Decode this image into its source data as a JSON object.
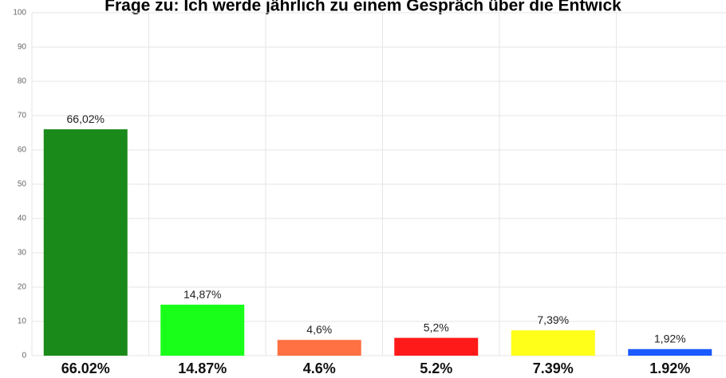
{
  "chart_data": {
    "type": "bar",
    "title": "Frage zu: Ich werde jährlich zu einem Gespräch über die Entwick",
    "categories": [
      "66.02%",
      "14.87%",
      "4.6%",
      "5.2%",
      "7.39%",
      "1.92%"
    ],
    "values": [
      66.02,
      14.87,
      4.6,
      5.2,
      7.39,
      1.92
    ],
    "value_labels": [
      "66,02%",
      "14,87%",
      "4,6%",
      "5,2%",
      "7,39%",
      "1,92%"
    ],
    "colors": [
      "#1a8a1a",
      "#1aff1a",
      "#ff7043",
      "#ff1a1a",
      "#ffff1a",
      "#1a5aff"
    ],
    "ylim": [
      0,
      100
    ],
    "yticks": [
      0,
      10,
      20,
      30,
      40,
      50,
      60,
      70,
      80,
      90,
      100
    ],
    "grid": true
  }
}
